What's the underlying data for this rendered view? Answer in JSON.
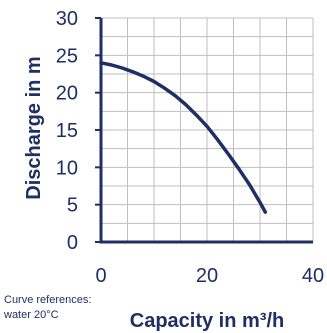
{
  "chart_data": {
    "type": "line",
    "xlabel": "Capacity in m³/h",
    "ylabel": "Discharge in m",
    "xlim": [
      0,
      40
    ],
    "ylim": [
      0,
      30
    ],
    "x_ticks": [
      0,
      20,
      40
    ],
    "y_ticks": [
      0,
      5,
      10,
      15,
      20,
      25,
      30
    ],
    "grid": true,
    "series": [
      {
        "x": [
          0,
          2,
          4,
          6,
          8,
          10,
          12,
          14,
          16,
          18,
          20,
          22,
          24,
          26,
          28,
          30,
          31
        ],
        "y": [
          24.0,
          23.7,
          23.3,
          22.8,
          22.2,
          21.5,
          20.6,
          19.6,
          18.4,
          17.0,
          15.5,
          13.7,
          11.8,
          9.8,
          7.7,
          5.3,
          4.0
        ]
      }
    ],
    "colors": {
      "axis": "#1f2f66",
      "grid": "#bfbfbf",
      "curve": "#1f2f66"
    }
  },
  "footnote": {
    "line1": "Curve references:",
    "line2": "water 20°C"
  }
}
